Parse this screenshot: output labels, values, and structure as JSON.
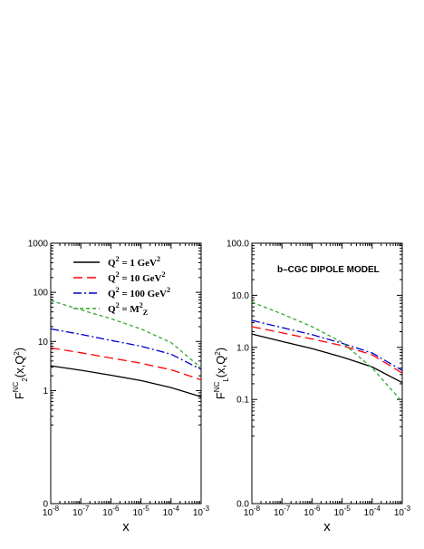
{
  "chart_data": [
    {
      "type": "line",
      "panel": "left",
      "scale": "log-log",
      "ylabel": {
        "base": "F",
        "sub": "2",
        "sup": "NC",
        "tail": "(x,Q",
        "tail_sup": "2",
        "close": ")"
      },
      "xlabel": "x",
      "xlim": [
        1e-08,
        0.001
      ],
      "ylim": [
        0,
        1000
      ],
      "x_ticks": [
        {
          "base": "10",
          "exp": "-8"
        },
        {
          "base": "10",
          "exp": "-7"
        },
        {
          "base": "10",
          "exp": "-6"
        },
        {
          "base": "10",
          "exp": "-5"
        },
        {
          "base": "10",
          "exp": "-4"
        },
        {
          "base": "10",
          "exp": "-3"
        }
      ],
      "y_ticks": [
        {
          "label": "0",
          "value": 0.05
        },
        {
          "label": "1",
          "value": 1
        },
        {
          "label": "10",
          "value": 10
        },
        {
          "label": "100",
          "value": 100
        },
        {
          "label": "1000",
          "value": 1000
        }
      ],
      "legend": [
        {
          "pre": "Q",
          "pre_sup": "2",
          "mid": " = 1 GeV",
          "post_sup": "2",
          "post_sub": "",
          "series": 0
        },
        {
          "pre": "Q",
          "pre_sup": "2",
          "mid": " = 10 GeV",
          "post_sup": "2",
          "post_sub": "",
          "series": 1
        },
        {
          "pre": "Q",
          "pre_sup": "2",
          "mid": " = 100 GeV",
          "post_sup": "2",
          "post_sub": "",
          "series": 2
        },
        {
          "pre": "Q",
          "pre_sup": "2",
          "mid": " = M",
          "post_sup": "2",
          "post_sub": "Z",
          "series": 3
        }
      ],
      "series": [
        {
          "color": "#000000",
          "dash": "",
          "x": [
            1e-08,
            1e-07,
            1e-06,
            1e-05,
            0.0001,
            0.001
          ],
          "values": [
            3.2,
            2.6,
            2.05,
            1.6,
            1.15,
            0.75
          ]
        },
        {
          "color": "#ff0000",
          "dash": "10,5",
          "x": [
            1e-08,
            1e-07,
            1e-06,
            1e-05,
            0.0001,
            0.001
          ],
          "values": [
            7.4,
            5.9,
            4.6,
            3.6,
            2.65,
            1.65
          ]
        },
        {
          "color": "#0000cc",
          "dash": "9,3,2,3",
          "x": [
            1e-08,
            1e-07,
            1e-06,
            1e-05,
            0.0001,
            0.001
          ],
          "values": [
            18,
            14,
            10.5,
            8.0,
            5.5,
            2.7
          ]
        },
        {
          "color": "#33aa33",
          "dash": "4,3",
          "x": [
            1e-08,
            1e-07,
            1e-06,
            1e-05,
            0.0001,
            0.001
          ],
          "values": [
            68,
            44,
            29,
            18,
            9.5,
            2.9
          ]
        }
      ]
    },
    {
      "type": "line",
      "panel": "right",
      "scale": "log-log",
      "annotation": "b–CGC DIPOLE MODEL",
      "ylabel": {
        "base": "F",
        "sub": "L",
        "sup": "NC",
        "tail": "(x,Q",
        "tail_sup": "2",
        "close": ")"
      },
      "xlabel": "x",
      "xlim": [
        1e-08,
        0.001
      ],
      "ylim": [
        0,
        100
      ],
      "x_ticks": [
        {
          "base": "10",
          "exp": "-8"
        },
        {
          "base": "10",
          "exp": "-7"
        },
        {
          "base": "10",
          "exp": "-6"
        },
        {
          "base": "10",
          "exp": "-5"
        },
        {
          "base": "10",
          "exp": "-4"
        },
        {
          "base": "10",
          "exp": "-3"
        }
      ],
      "y_ticks": [
        {
          "label": "0.0",
          "value": 0.01
        },
        {
          "label": "0.1",
          "value": 0.1
        },
        {
          "label": "1.0",
          "value": 1
        },
        {
          "label": "10.0",
          "value": 10
        },
        {
          "label": "100.0",
          "value": 100
        }
      ],
      "series": [
        {
          "color": "#000000",
          "dash": "",
          "x": [
            1e-08,
            1e-07,
            1e-06,
            1e-05,
            0.0001,
            0.001
          ],
          "values": [
            1.8,
            1.3,
            0.95,
            0.65,
            0.42,
            0.21
          ]
        },
        {
          "color": "#ff0000",
          "dash": "10,5",
          "x": [
            1e-08,
            1e-07,
            1e-06,
            1e-05,
            0.0001,
            0.001
          ],
          "values": [
            2.5,
            1.9,
            1.45,
            1.08,
            0.72,
            0.32
          ]
        },
        {
          "color": "#0000cc",
          "dash": "9,3,2,3",
          "x": [
            1e-08,
            1e-07,
            1e-06,
            1e-05,
            0.0001,
            0.001
          ],
          "values": [
            3.3,
            2.4,
            1.75,
            1.2,
            0.78,
            0.36
          ]
        },
        {
          "color": "#33aa33",
          "dash": "4,3",
          "x": [
            1e-08,
            1e-07,
            1e-06,
            1e-05,
            0.0001,
            0.001
          ],
          "values": [
            7.4,
            4.4,
            2.5,
            1.25,
            0.4,
            0.09
          ]
        }
      ]
    }
  ]
}
